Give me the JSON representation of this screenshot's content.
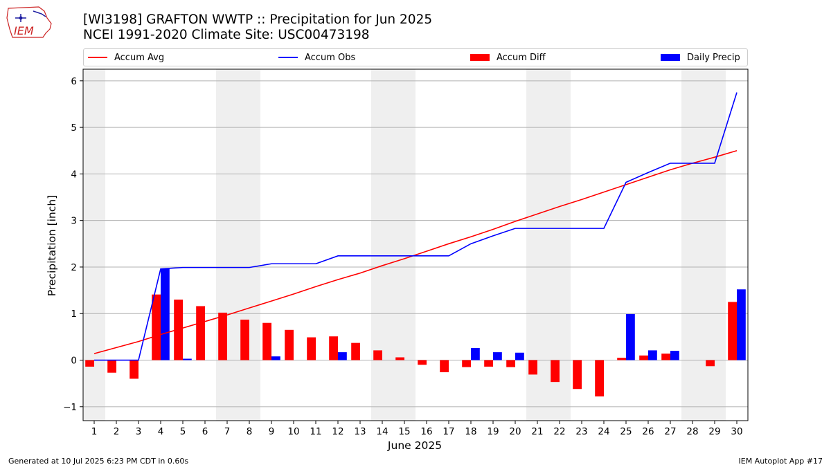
{
  "logo": {
    "text": "IEM"
  },
  "title_line1": "[WI3198] GRAFTON WWTP :: Precipitation for Jun 2025",
  "title_line2": "NCEI 1991-2020 Climate Site: USC00473198",
  "legend": [
    {
      "label": "Accum Avg",
      "kind": "line",
      "color": "#ff0000"
    },
    {
      "label": "Accum Obs",
      "kind": "line",
      "color": "#0000ff"
    },
    {
      "label": "Accum Diff",
      "kind": "bar",
      "color": "#ff0000"
    },
    {
      "label": "Daily Precip",
      "kind": "bar",
      "color": "#0000ff"
    }
  ],
  "footer_left": "Generated at 10 Jul 2025 6:23 PM CDT in 0.60s",
  "footer_right": "IEM Autoplot App #17",
  "chart_data": {
    "type": "bar",
    "xlabel": "June 2025",
    "ylabel": "Precipitation [inch]",
    "ylim": [
      -1.3,
      6.25
    ],
    "yticks": [
      -1,
      0,
      1,
      2,
      3,
      4,
      5,
      6
    ],
    "grid": "horizontal",
    "legend_position": "top",
    "weekend_shading": [
      [
        1,
        1
      ],
      [
        7,
        8
      ],
      [
        14,
        15
      ],
      [
        21,
        22
      ],
      [
        28,
        29
      ]
    ],
    "days": [
      1,
      2,
      3,
      4,
      5,
      6,
      7,
      8,
      9,
      10,
      11,
      12,
      13,
      14,
      15,
      16,
      17,
      18,
      19,
      20,
      21,
      22,
      23,
      24,
      25,
      26,
      27,
      28,
      29,
      30
    ],
    "series": [
      {
        "name": "Accum Avg",
        "type": "line",
        "color": "#ff0000",
        "values": [
          0.14,
          0.27,
          0.4,
          0.55,
          0.69,
          0.83,
          0.97,
          1.12,
          1.27,
          1.42,
          1.58,
          1.73,
          1.87,
          2.03,
          2.18,
          2.34,
          2.5,
          2.65,
          2.81,
          2.98,
          3.14,
          3.3,
          3.45,
          3.61,
          3.77,
          3.93,
          4.09,
          4.23,
          4.36,
          4.5
        ]
      },
      {
        "name": "Accum Obs",
        "type": "line",
        "color": "#0000ff",
        "values": [
          0.0,
          0.0,
          0.0,
          1.96,
          1.99,
          1.99,
          1.99,
          1.99,
          2.07,
          2.07,
          2.07,
          2.24,
          2.24,
          2.24,
          2.24,
          2.24,
          2.24,
          2.5,
          2.67,
          2.83,
          2.83,
          2.83,
          2.83,
          2.83,
          3.82,
          4.03,
          4.23,
          4.23,
          4.23,
          5.75
        ]
      },
      {
        "name": "Accum Diff",
        "type": "bar",
        "color": "#ff0000",
        "values": [
          -0.14,
          -0.27,
          -0.4,
          1.41,
          1.3,
          1.16,
          1.02,
          0.87,
          0.8,
          0.65,
          0.49,
          0.51,
          0.37,
          0.21,
          0.06,
          -0.1,
          -0.26,
          -0.15,
          -0.14,
          -0.15,
          -0.31,
          -0.47,
          -0.62,
          -0.78,
          0.05,
          0.1,
          0.14,
          0.0,
          -0.13,
          1.25
        ]
      },
      {
        "name": "Daily Precip",
        "type": "bar",
        "color": "#0000ff",
        "values": [
          0.0,
          0.0,
          0.0,
          1.96,
          0.03,
          0.0,
          0.0,
          0.0,
          0.08,
          0.0,
          0.0,
          0.17,
          0.0,
          0.0,
          0.0,
          0.0,
          0.0,
          0.26,
          0.17,
          0.16,
          0.0,
          0.0,
          0.0,
          0.0,
          0.99,
          0.21,
          0.2,
          0.0,
          0.0,
          1.52
        ]
      }
    ]
  }
}
